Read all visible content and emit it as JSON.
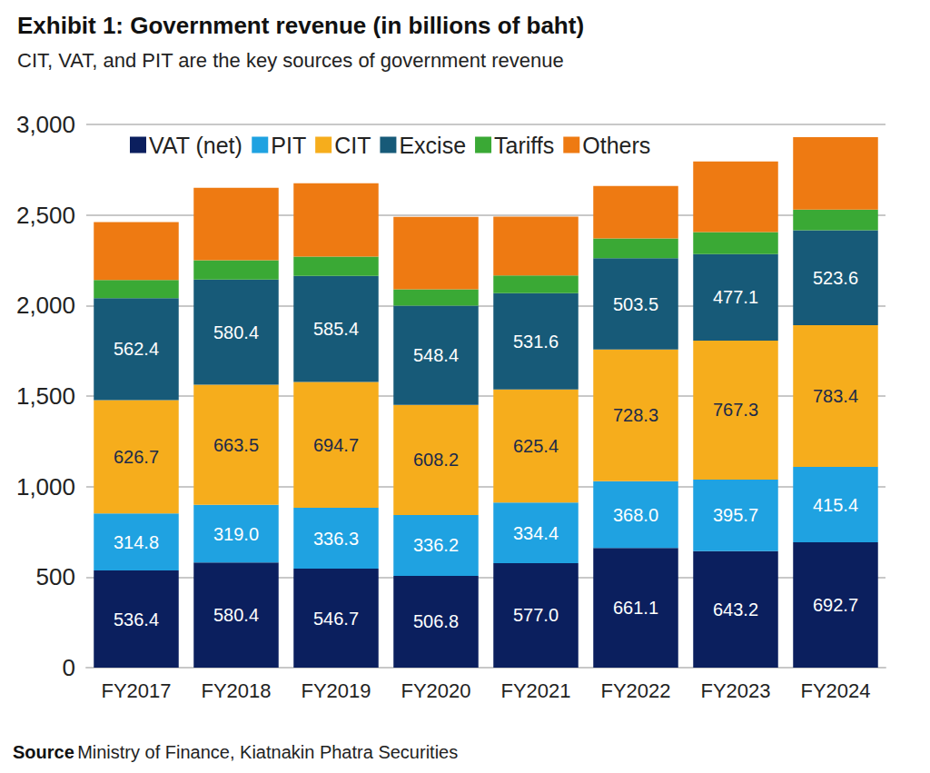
{
  "chart_data": {
    "type": "bar",
    "title": "Exhibit 1: Government revenue (in billions of baht)",
    "subtitle": "CIT, VAT, and PIT are the key sources of government revenue",
    "source_label": "Source",
    "source": "Ministry of Finance, Kiatnakin Phatra Securities",
    "categories": [
      "FY2017",
      "FY2018",
      "FY2019",
      "FY2020",
      "FY2021",
      "FY2022",
      "FY2023",
      "FY2024"
    ],
    "stacked": true,
    "grid": true,
    "legend": "top",
    "ylim": [
      0,
      3000
    ],
    "yticks": [
      0,
      500,
      {
        "value": 1000,
        "label": "1,000"
      },
      {
        "value": 1500,
        "label": "1,500"
      },
      {
        "value": 2000,
        "label": "2,000"
      },
      {
        "value": 2500,
        "label": "2,500"
      },
      {
        "value": 3000,
        "label": "3,000"
      }
    ],
    "series": [
      {
        "name": "VAT (net)",
        "color": "#0b1f5e",
        "data_labels": true,
        "values": [
          536.4,
          580.4,
          546.7,
          506.8,
          577.0,
          661.1,
          643.2,
          692.7
        ],
        "value_labels": [
          "536.4",
          "580.4",
          "546.7",
          "506.8",
          "577.0",
          "661.1",
          "643.2",
          "692.7"
        ]
      },
      {
        "name": "PIT",
        "color": "#1fa2e1",
        "data_labels": true,
        "values": [
          314.8,
          319.0,
          336.3,
          336.2,
          334.4,
          368.0,
          395.7,
          415.4
        ],
        "value_labels": [
          "314.8",
          "319.0",
          "336.3",
          "336.2",
          "334.4",
          "368.0",
          "395.7",
          "415.4"
        ]
      },
      {
        "name": "CIT",
        "color": "#f6ad1c",
        "data_labels": true,
        "values": [
          626.7,
          663.5,
          694.7,
          608.2,
          625.4,
          728.3,
          767.3,
          783.4
        ],
        "value_labels": [
          "626.7",
          "663.5",
          "694.7",
          "608.2",
          "625.4",
          "728.3",
          "767.3",
          "783.4"
        ]
      },
      {
        "name": "Excise",
        "color": "#175a78",
        "data_labels": true,
        "values": [
          562.4,
          580.4,
          585.4,
          548.4,
          531.6,
          503.5,
          477.1,
          523.6
        ],
        "value_labels": [
          "562.4",
          "580.4",
          "585.4",
          "548.4",
          "531.6",
          "503.5",
          "477.1",
          "523.6"
        ]
      },
      {
        "name": "Tariffs",
        "color": "#3aa935",
        "data_labels": false,
        "values": [
          100,
          107,
          107,
          90,
          97,
          109,
          122,
          115
        ]
      },
      {
        "name": "Others",
        "color": "#ee7a12",
        "data_labels": false,
        "values": [
          320,
          400,
          405,
          400,
          325,
          290,
          390,
          400
        ]
      }
    ]
  }
}
